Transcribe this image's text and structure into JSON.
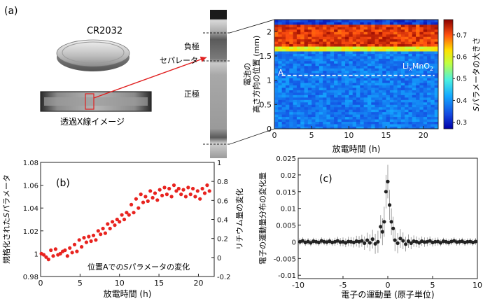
{
  "panel_labels": {
    "a": "(a)",
    "b": "(b)",
    "c": "(c)"
  },
  "cell_label": "CR2032",
  "xray_caption": "透過X線イメージ",
  "cross_section_labels": {
    "anode": "負極",
    "separator": "セパレータ",
    "cathode": "正極"
  },
  "colors": {
    "marker": "#e8231f",
    "arrow": "#e02020",
    "heat_high": "#c81e1e",
    "heat_low": "#2060d8"
  },
  "chart_data": [
    {
      "id": "a-heatmap",
      "type": "heatmap",
      "xlabel": "放電時間 (h)",
      "ylabel_lines": [
        "電池の",
        "高さ方向の位置 (mm)"
      ],
      "colorbar_label": "Sパラメータの大きさ",
      "colorbar_label_italic": "S",
      "colorbar_label_rest": "パラメータの大きさ",
      "annotation": "LixMnO2",
      "annotation_base": "Li",
      "annotation_sub": "x",
      "annotation_mid": "MnO",
      "annotation_sub2": "2",
      "line_label": "A",
      "line_y": 1.1,
      "xlim": [
        0,
        22
      ],
      "ylim": [
        0,
        2.25
      ],
      "clim": [
        0.27,
        0.77
      ],
      "xticks": [
        0,
        5,
        10,
        15,
        20
      ],
      "yticks": [
        0,
        0.5,
        1,
        1.5,
        2
      ],
      "cticks": [
        0.3,
        0.4,
        0.5,
        0.6,
        0.7
      ],
      "bands": [
        {
          "y": [
            2.16,
            2.25
          ],
          "level": 0.33,
          "label": "top"
        },
        {
          "y": [
            1.72,
            2.16
          ],
          "level": 0.72,
          "label": "anode"
        },
        {
          "y": [
            1.6,
            1.72
          ],
          "level": 0.6,
          "label": "separator"
        },
        {
          "y": [
            0,
            1.6
          ],
          "level": 0.38,
          "label": "cathode"
        }
      ]
    },
    {
      "id": "b-scatter",
      "type": "scatter",
      "annotation": "位置AでのSパラメータの変化",
      "annotation_pre": "位置Aでの",
      "annotation_italic": "S",
      "annotation_post": "パラメータの変化",
      "xlabel": "放電時間 (h)",
      "ylabel": "規格化されたSパラメータ",
      "ylabel_pre": "規格化された",
      "ylabel_italic": "S",
      "ylabel_post": "パラメータ",
      "ylabel_right": "リチウム量の変化",
      "xlim": [
        0,
        22
      ],
      "ylim": [
        0.98,
        1.08
      ],
      "y2lim": [
        -0.2,
        1.0
      ],
      "xticks": [
        0,
        5,
        10,
        15,
        20
      ],
      "yticks": [
        0.98,
        1,
        1.02,
        1.04,
        1.06,
        1.08
      ],
      "yticklabels": [
        "0.98",
        "1",
        "1.02",
        "1.04",
        "1.06",
        "1.08"
      ],
      "y2ticks": [
        -0.2,
        0,
        0.2,
        0.4,
        0.6,
        0.8,
        1
      ],
      "y2ticklabels": [
        "-0.2",
        "0",
        "0.2",
        "0.4",
        "0.6",
        "0.8",
        "1"
      ],
      "x": [
        0.1,
        0.4,
        0.7,
        1.0,
        1.3,
        1.6,
        1.9,
        2.2,
        2.5,
        2.8,
        3.1,
        3.4,
        3.7,
        4.0,
        4.3,
        4.6,
        4.9,
        5.2,
        5.5,
        5.8,
        6.1,
        6.4,
        6.7,
        7.0,
        7.3,
        7.6,
        7.9,
        8.2,
        8.5,
        8.8,
        9.1,
        9.4,
        9.7,
        10.0,
        10.3,
        10.6,
        10.9,
        11.2,
        11.5,
        11.8,
        12.1,
        12.4,
        12.7,
        13.0,
        13.3,
        13.6,
        13.9,
        14.2,
        14.5,
        14.8,
        15.1,
        15.4,
        15.7,
        16.0,
        16.3,
        16.6,
        16.9,
        17.2,
        17.5,
        17.8,
        18.1,
        18.4,
        18.7,
        19.0,
        19.3,
        19.6,
        19.9,
        20.2,
        20.5,
        20.8,
        21.1,
        21.4
      ],
      "y": [
        1.0,
        0.999,
        0.997,
        0.995,
        1.003,
        0.998,
        1.004,
        0.999,
        1.0,
        1.002,
        1.003,
        0.998,
        1.005,
        1.001,
        1.008,
        1.002,
        1.012,
        1.006,
        1.014,
        1.01,
        1.015,
        1.011,
        1.016,
        1.012,
        1.02,
        1.017,
        1.022,
        1.018,
        1.026,
        1.022,
        1.028,
        1.025,
        1.03,
        1.028,
        1.034,
        1.03,
        1.036,
        1.034,
        1.043,
        1.036,
        1.048,
        1.04,
        1.052,
        1.045,
        1.05,
        1.046,
        1.055,
        1.049,
        1.053,
        1.047,
        1.056,
        1.051,
        1.058,
        1.052,
        1.057,
        1.05,
        1.06,
        1.055,
        1.057,
        1.052,
        1.056,
        1.05,
        1.058,
        1.052,
        1.057,
        1.05,
        1.055,
        1.048,
        1.057,
        1.053,
        1.06,
        1.055
      ]
    },
    {
      "id": "c-errorbar",
      "type": "scatter",
      "xlabel": "電子の運動量 (原子単位)",
      "ylabel_lines": [
        "電子の運動量分布の変化量"
      ],
      "xlim": [
        -10,
        10
      ],
      "ylim": [
        -0.011,
        0.025
      ],
      "xticks": [
        -10,
        -5,
        0,
        5,
        10
      ],
      "yticks": [
        -0.01,
        -0.005,
        0,
        0.005,
        0.01,
        0.015,
        0.02,
        0.025
      ],
      "yticklabels": [
        "-0.01",
        "-0.005",
        "0",
        "0.005",
        "0.01",
        "0.015",
        "0.02",
        "0.025"
      ],
      "x": [
        -9.8,
        -9.5,
        -9.2,
        -8.9,
        -8.6,
        -8.3,
        -8.0,
        -7.7,
        -7.4,
        -7.1,
        -6.8,
        -6.5,
        -6.2,
        -5.9,
        -5.6,
        -5.3,
        -5.0,
        -4.7,
        -4.4,
        -4.1,
        -3.8,
        -3.5,
        -3.2,
        -2.9,
        -2.6,
        -2.3,
        -2.0,
        -1.7,
        -1.4,
        -1.1,
        -0.8,
        -0.6,
        -0.4,
        -0.2,
        0.0,
        0.2,
        0.4,
        0.6,
        0.8,
        1.1,
        1.4,
        1.7,
        2.0,
        2.3,
        2.6,
        2.9,
        3.2,
        3.5,
        3.8,
        4.1,
        4.4,
        4.7,
        5.0,
        5.3,
        5.6,
        5.9,
        6.2,
        6.5,
        6.8,
        7.1,
        7.4,
        7.7,
        8.0,
        8.3,
        8.6,
        8.9,
        9.2,
        9.5,
        9.8
      ],
      "y": [
        0.0,
        0.0003,
        -0.0002,
        0.0001,
        -0.0003,
        0.0002,
        0.0,
        -0.0002,
        0.0003,
        0.0,
        -0.0001,
        0.0002,
        -0.0002,
        0.0,
        0.0003,
        -0.0001,
        0.0,
        -0.0003,
        0.0001,
        0.0,
        -0.0002,
        0.0002,
        0.0,
        0.0003,
        -0.0004,
        0.0005,
        -0.0003,
        0.0008,
        -0.0006,
        0.0,
        0.0045,
        0.003,
        0.006,
        0.015,
        0.018,
        0.011,
        0.006,
        0.004,
        0.0005,
        -0.0004,
        0.001,
        0.0003,
        -0.0007,
        0.0002,
        -0.0004,
        0.0002,
        0.0,
        -0.0003,
        0.0002,
        -0.0001,
        0.0,
        0.0003,
        -0.0002,
        0.0,
        0.0001,
        -0.0003,
        0.0002,
        0.0,
        -0.0002,
        0.0001,
        0.0003,
        -0.0001,
        0.0,
        0.0002,
        -0.0002,
        0.0,
        0.0001,
        -0.0002,
        0.0001
      ],
      "err": [
        0.001,
        0.001,
        0.001,
        0.001,
        0.001,
        0.001,
        0.001,
        0.001,
        0.001,
        0.001,
        0.001,
        0.001,
        0.001,
        0.0012,
        0.0012,
        0.0012,
        0.0013,
        0.0013,
        0.0014,
        0.0014,
        0.0015,
        0.0016,
        0.0017,
        0.0018,
        0.002,
        0.0022,
        0.0025,
        0.0028,
        0.003,
        0.0033,
        0.0035,
        0.004,
        0.0045,
        0.005,
        0.005,
        0.0045,
        0.004,
        0.0035,
        0.0033,
        0.003,
        0.0028,
        0.0025,
        0.0022,
        0.002,
        0.0018,
        0.0017,
        0.0016,
        0.0015,
        0.0014,
        0.0014,
        0.0013,
        0.0013,
        0.0012,
        0.0012,
        0.0012,
        0.001,
        0.001,
        0.001,
        0.001,
        0.001,
        0.001,
        0.001,
        0.001,
        0.001,
        0.001,
        0.001,
        0.001,
        0.001,
        0.001
      ]
    }
  ]
}
